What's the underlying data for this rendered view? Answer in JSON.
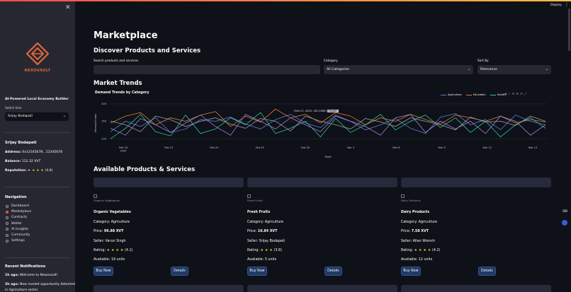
{
  "header": {
    "deploy_label": "Deploy",
    "menu_glyph": "⋮"
  },
  "sidebar": {
    "close_glyph": "✕",
    "brand": "NEXOVAULT",
    "tagline": "AI-Powered Local Economy Builder",
    "switch_user_label": "Switch User",
    "switch_user_value": "Srijay Bodapati",
    "profile": {
      "name": "Srijay Bodapati",
      "address_label": "Address:",
      "address_value": "0x12345678...12345678",
      "balance_label": "Balance:",
      "balance_value": "112.32 XVT",
      "reputation_label": "Reputation:",
      "reputation_stars": "★ ★ ★ ★",
      "reputation_value": "(4.6)"
    },
    "navigation_title": "Navigation",
    "nav_items": [
      {
        "label": "Dashboard",
        "selected": false
      },
      {
        "label": "Marketplace",
        "selected": true
      },
      {
        "label": "Contracts",
        "selected": false
      },
      {
        "label": "Wallet",
        "selected": false
      },
      {
        "label": "AI Insights",
        "selected": false
      },
      {
        "label": "Community",
        "selected": false
      },
      {
        "label": "Settings",
        "selected": false
      }
    ],
    "notifications_title": "Recent Notifications",
    "notifications": [
      {
        "time": "1h ago:",
        "text": "Welcome to Nexovault!"
      },
      {
        "time": "3h ago:",
        "text": "New market opportunity detected",
        "text2": "in Agriculture sector"
      }
    ]
  },
  "main": {
    "title": "Marketplace",
    "discover_title": "Discover Products and Services",
    "search_label": "Search products and services",
    "search_placeholder": "",
    "category_label": "Category",
    "category_value": "All Categories",
    "sort_label": "Sort By",
    "sort_value": "Relevance",
    "trends_title": "Market Trends",
    "available_title": "Available Products & Services"
  },
  "chart_data": {
    "type": "line",
    "title": "Demand Trends by Category",
    "xlabel": "Date",
    "ylabel": "Demand Index",
    "x_ticks": [
      "Feb 16\n2025",
      "Feb 19",
      "Feb 22",
      "Feb 25",
      "Feb 28",
      "Mar 3",
      "Mar 6",
      "Mar 9",
      "Mar 12",
      "Mar 15"
    ],
    "y_ticks": [
      100,
      150,
      200
    ],
    "ylim": [
      80,
      210
    ],
    "tooltip": {
      "text": "(Feb 27, 2025, 161.5585)",
      "badge": "Health"
    },
    "legend_placement": "top-right",
    "series": [
      {
        "name": "Agriculture",
        "color": "#5b7bd6",
        "values": [
          120,
          150,
          135,
          160,
          118,
          128,
          155,
          150,
          162,
          142,
          128,
          155,
          170,
          145,
          132,
          168,
          150,
          125,
          140,
          158,
          130,
          115,
          162,
          172,
          140,
          155,
          126,
          168,
          150,
          140
        ]
      },
      {
        "name": "Education",
        "color": "#e07a3c",
        "values": [
          145,
          165,
          175,
          140,
          160,
          150,
          168,
          178,
          135,
          165,
          148,
          185,
          160,
          170,
          145,
          175,
          165,
          140,
          160,
          150,
          170,
          155,
          142,
          168,
          160,
          150,
          165,
          145,
          155,
          148
        ]
      },
      {
        "name": "Health",
        "color": "#2fc4a0",
        "values": [
          100,
          130,
          170,
          120,
          108,
          168,
          115,
          128,
          160,
          140,
          175,
          115,
          130,
          150,
          105,
          158,
          118,
          140,
          170,
          125,
          150,
          168,
          132,
          160,
          118,
          150,
          105,
          140,
          160,
          130
        ]
      },
      {
        "name": "Tech",
        "color": "#a47be0",
        "values": [
          130,
          110,
          158,
          140,
          118,
          145,
          168,
          135,
          110,
          170,
          150,
          128,
          160,
          140,
          120,
          165,
          150,
          135,
          110,
          160,
          170,
          118,
          150,
          128,
          150,
          115,
          165,
          150,
          110,
          140
        ]
      },
      {
        "name": "Services",
        "color": "#9a9aa4",
        "values": [
          150,
          140,
          120,
          165,
          155,
          135,
          150,
          160,
          142,
          130,
          158,
          150,
          122,
          165,
          150,
          140,
          128,
          158,
          148,
          135,
          160,
          150,
          140,
          125,
          162,
          148,
          150,
          138,
          165,
          150
        ]
      }
    ]
  },
  "products": [
    {
      "image_alt": "Organic Vegetables",
      "name": "Organic Vegetables",
      "category": "Category: Agriculture",
      "price_label": "Price:",
      "price": "96.88 XVT",
      "seller": "Seller: Varun Singh",
      "rating_label": "Rating:",
      "rating_stars": "★ ★ ★ ★",
      "rating_value": "(4.1)",
      "available": "Available: 19 units",
      "buy_label": "Buy Now",
      "details_label": "Details"
    },
    {
      "image_alt": "Fresh Fruits",
      "name": "Fresh Fruits",
      "category": "Category: Agriculture",
      "price_label": "Price:",
      "price": "16.84 XVT",
      "seller": "Seller: Srijay Bodapati",
      "rating_label": "Rating:",
      "rating_stars": "★ ★ ★",
      "rating_value": "(3.8)",
      "available": "Available: 5 units",
      "buy_label": "Buy Now",
      "details_label": "Details"
    },
    {
      "image_alt": "Dairy Products",
      "name": "Dairy Products",
      "category": "Category: Agriculture",
      "price_label": "Price:",
      "price": "7.58 XVT",
      "seller": "Seller: Allan Wrench",
      "rating_label": "Rating:",
      "rating_stars": "★ ★ ★ ★",
      "rating_value": "(4.2)",
      "available": "Available: 12 units",
      "buy_label": "Buy Now",
      "details_label": "Details"
    }
  ]
}
